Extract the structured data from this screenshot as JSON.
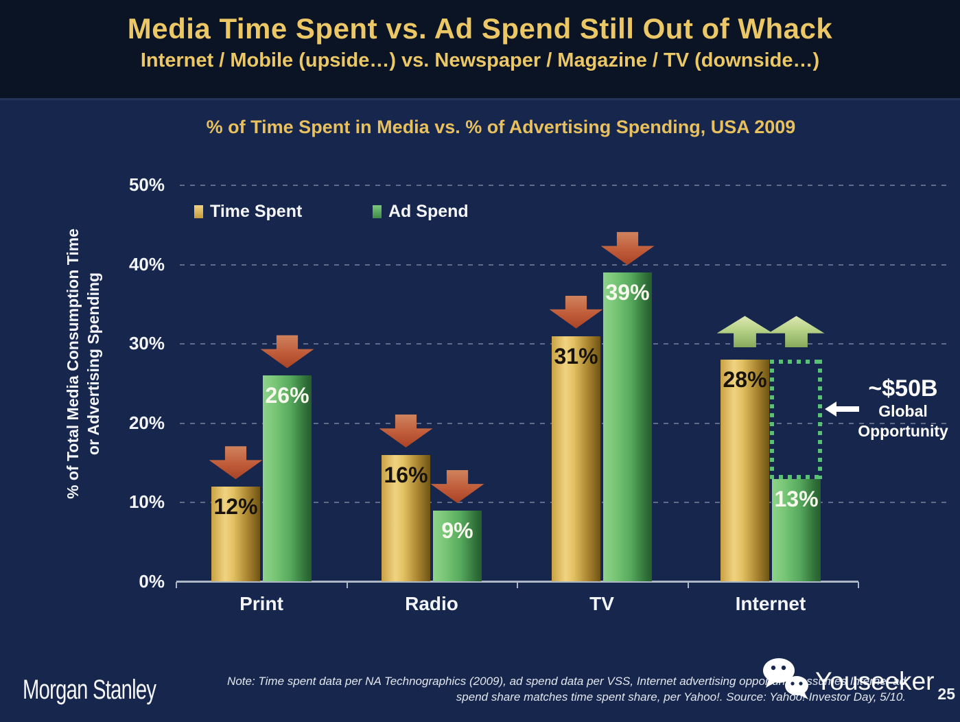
{
  "header": {
    "title": "Media Time Spent vs. Ad Spend Still Out of Whack",
    "subtitle": "Internet / Mobile (upside…) vs. Newspaper / Magazine / TV (downside…)"
  },
  "chart": {
    "title": "% of Time Spent in Media vs. % of Advertising Spending, USA 2009",
    "y_title_line1": "% of Total Media Consumption Time",
    "y_title_line2": "or Advertising Spending"
  },
  "chart_data": {
    "type": "bar",
    "title": "% of Time Spent in Media vs. % of Advertising Spending, USA 2009",
    "categories": [
      "Print",
      "Radio",
      "TV",
      "Internet"
    ],
    "series": [
      {
        "name": "Time Spent",
        "values": [
          12,
          16,
          31,
          28
        ],
        "bar_color": "gold",
        "label_color": "dark",
        "trend_arrows": [
          "down",
          "down",
          "down",
          "up"
        ]
      },
      {
        "name": "Ad Spend",
        "values": [
          26,
          9,
          39,
          13
        ],
        "bar_color": "green",
        "label_color": "white",
        "trend_arrows": [
          "down",
          "down",
          "down",
          "up"
        ]
      }
    ],
    "value_suffix": "%",
    "xlabel": "",
    "ylabel": "% of Total Media Consumption Time or Advertising Spending",
    "ylim": [
      0,
      50
    ],
    "yticks": [
      0,
      10,
      20,
      30,
      40,
      50
    ],
    "ytick_suffix": "%",
    "grid": "dashed-horizontal",
    "legend_position": "top-left",
    "annotation": {
      "value": "~$50B",
      "line1": "Global",
      "line2": "Opportunity",
      "box": {
        "category": "Internet",
        "series": "Ad Spend",
        "from": 13,
        "to": 28
      }
    }
  },
  "colors": {
    "title_gold": "#ebc766",
    "bar_gold": "#d9b255",
    "bar_green": "#57a85c",
    "arrow_down_red": "#c05c39",
    "arrow_up_green": "#b8d288",
    "gap_box_green": "#57c274",
    "background_header": "#0b1425",
    "background_body": "#16264c"
  },
  "footer": {
    "brand": "Morgan Stanley",
    "note_line1": "Note: Time spent data per NA Technographics (2009), ad spend data per VSS, Internet advertising opportunity assumes Internet ad",
    "note_line2": "spend share matches time spent share, per Yahoo!. Source: Yahoo! Investor Day, 5/10.",
    "watermark": "Youseeker",
    "page_number": "25"
  }
}
